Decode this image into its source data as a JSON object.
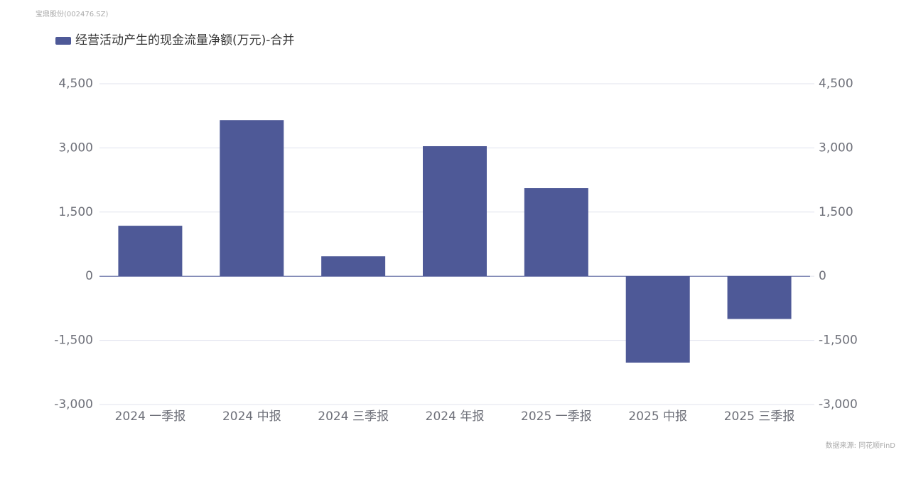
{
  "chart_data": {
    "type": "bar",
    "header": "宝鼎股份(002476.SZ)",
    "source": "数据来源: 同花顺FinD",
    "categories": [
      "2024 一季报",
      "2024 中报",
      "2024 三季报",
      "2024 年报",
      "2025 一季报",
      "2025 中报",
      "2025 三季报"
    ],
    "series": [
      {
        "name": "经营活动产生的现金流量净额(万元)-合并",
        "color": "#4e5997",
        "values": [
          1180,
          3650,
          465,
          3040,
          2060,
          -2020,
          -1000
        ]
      }
    ],
    "ylim": [
      -3000,
      4500
    ],
    "yticks": [
      {
        "value": -3000,
        "label": "-3,000"
      },
      {
        "value": -1500,
        "label": "-1,500"
      },
      0,
      {
        "value": 1500,
        "label": "1,500"
      },
      {
        "value": 3000,
        "label": "3,000"
      },
      {
        "value": 4500,
        "label": "4,500"
      }
    ],
    "y2lim": [
      -3000,
      4500
    ],
    "y2ticks": [
      {
        "value": -3000,
        "label": "-3,000"
      },
      {
        "value": -1500,
        "label": "-1,500"
      },
      0,
      {
        "value": 1500,
        "label": "1,500"
      },
      {
        "value": 3000,
        "label": "3,000"
      },
      {
        "value": 4500,
        "label": "4,500"
      }
    ],
    "grid": true
  }
}
